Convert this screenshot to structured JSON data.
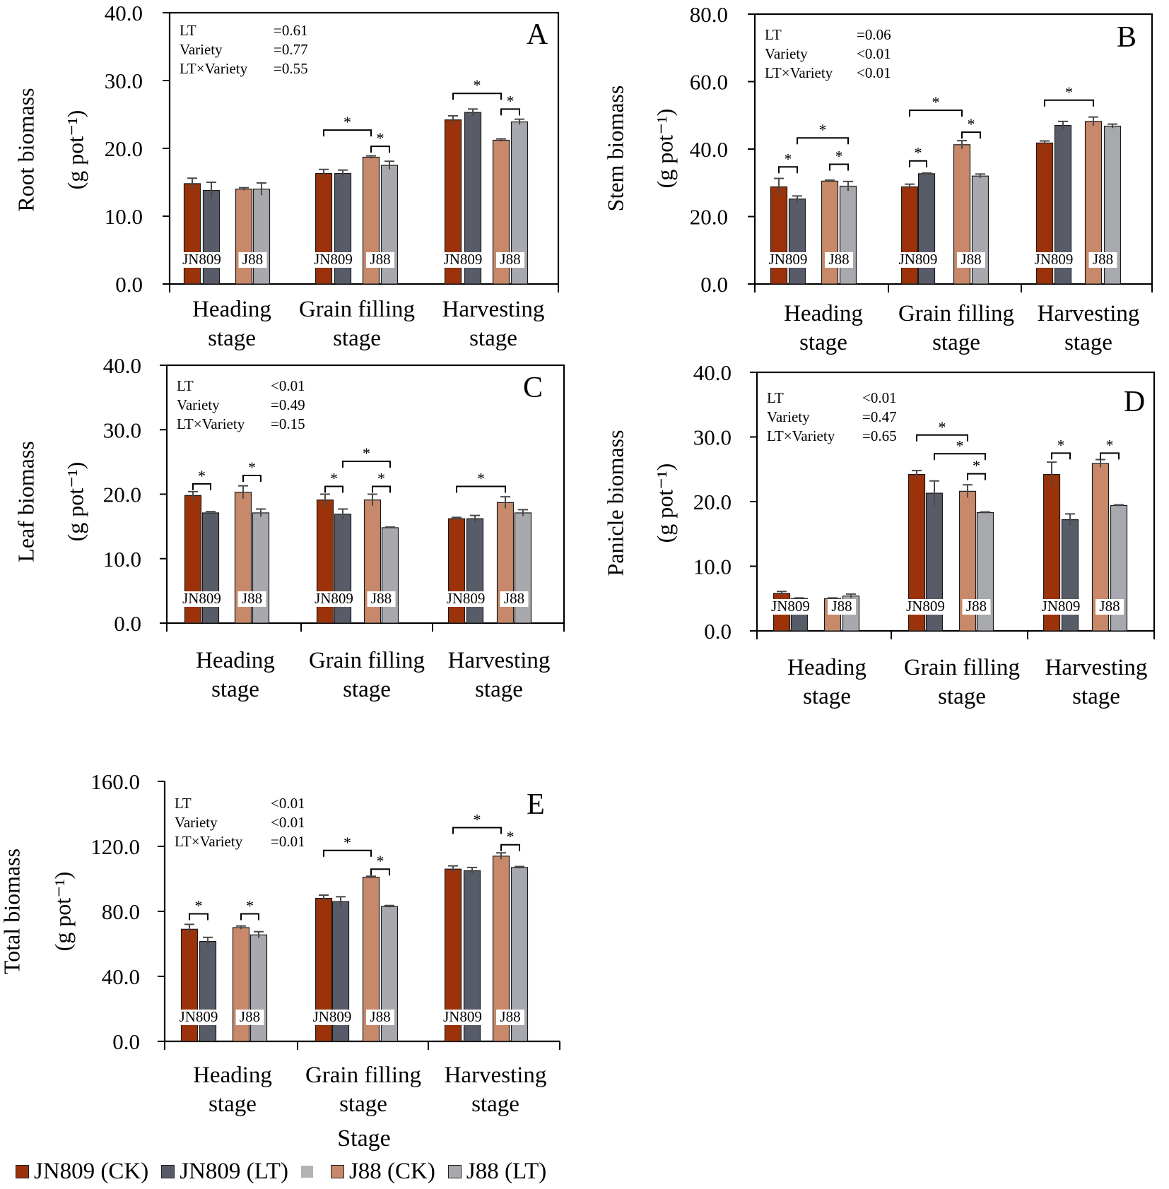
{
  "figure": {
    "x_axis_title": "Stage",
    "legend": [
      {
        "label": "JN809 (CK)",
        "color": "#9b3209"
      },
      {
        "label": "JN809 (LT)",
        "color": "#585c68"
      },
      {
        "label": "",
        "color": "#b2b2b2"
      },
      {
        "label": "J88 (CK)",
        "color": "#c8896a"
      },
      {
        "label": "J88 (LT)",
        "color": "#a7a9ae"
      }
    ]
  },
  "chart_data": [
    {
      "type": "bar",
      "panel": "A",
      "ylabel": [
        "Root biomass",
        "(g pot⁻¹)"
      ],
      "ylim": [
        0,
        40
      ],
      "yticks": [
        0,
        10,
        20,
        30,
        40
      ],
      "ytick_labels": [
        "0.0",
        "10.0",
        "20.0",
        "30.0",
        "40.0"
      ],
      "categories": [
        [
          "Heading",
          "stage"
        ],
        [
          "Grain filling",
          "stage"
        ],
        [
          "Harvesting",
          "stage"
        ]
      ],
      "series": [
        {
          "name": "JN809 (CK)",
          "values": [
            14.8,
            16.3,
            24.2
          ],
          "errors": [
            0.8,
            0.6,
            0.6
          ]
        },
        {
          "name": "JN809 (LT)",
          "values": [
            13.8,
            16.3,
            25.3
          ],
          "errors": [
            1.2,
            0.5,
            0.5
          ]
        },
        {
          "name": "J88 (CK)",
          "values": [
            14.0,
            18.7,
            21.2
          ],
          "errors": [
            0.2,
            0.2,
            0.2
          ]
        },
        {
          "name": "J88 (LT)",
          "values": [
            14.0,
            17.5,
            23.9
          ],
          "errors": [
            0.9,
            0.6,
            0.4
          ]
        }
      ],
      "group_labels": [
        "JN809",
        "J88"
      ],
      "stats": [
        {
          "label": "LT",
          "value": "=0.61"
        },
        {
          "label": "Variety",
          "value": "=0.77"
        },
        {
          "label": "LT×Variety",
          "value": "=0.55"
        }
      ],
      "sig_brackets": [
        {
          "group": 1,
          "from": 0,
          "to": 2,
          "level": 22.7,
          "label": "*"
        },
        {
          "group": 1,
          "from": 2,
          "to": 3,
          "level": 20.3,
          "label": "*"
        },
        {
          "group": 2,
          "from": 0,
          "to": 2,
          "level": 28.1,
          "label": "*"
        },
        {
          "group": 2,
          "from": 2,
          "to": 3,
          "level": 25.8,
          "label": "*"
        }
      ]
    },
    {
      "type": "bar",
      "panel": "B",
      "ylabel": [
        "Stem biomass",
        "(g pot⁻¹)"
      ],
      "ylim": [
        0,
        80
      ],
      "yticks": [
        0,
        20,
        40,
        60,
        80
      ],
      "ytick_labels": [
        "0.0",
        "20.0",
        "40.0",
        "60.0",
        "80.0"
      ],
      "categories": [
        [
          "Heading",
          "stage"
        ],
        [
          "Grain filling",
          "stage"
        ],
        [
          "Harvesting",
          "stage"
        ]
      ],
      "series": [
        {
          "name": "JN809 (CK)",
          "values": [
            28.8,
            28.8,
            41.8
          ],
          "errors": [
            2.5,
            0.8,
            0.6
          ]
        },
        {
          "name": "JN809 (LT)",
          "values": [
            25.2,
            32.7,
            47.0
          ],
          "errors": [
            0.9,
            0.2,
            1.2
          ]
        },
        {
          "name": "J88 (CK)",
          "values": [
            30.5,
            41.3,
            48.2
          ],
          "errors": [
            0.3,
            1.2,
            1.3
          ]
        },
        {
          "name": "J88 (LT)",
          "values": [
            29.0,
            32.0,
            46.8
          ],
          "errors": [
            1.4,
            0.6,
            0.6
          ]
        }
      ],
      "group_labels": [
        "JN809",
        "J88"
      ],
      "stats": [
        {
          "label": "LT",
          "value": "=0.06"
        },
        {
          "label": "Variety",
          "value": "<0.01"
        },
        {
          "label": "LT×Variety",
          "value": "<0.01"
        }
      ],
      "sig_brackets": [
        {
          "group": 0,
          "from": 0,
          "to": 1,
          "level": 34.7,
          "label": "*"
        },
        {
          "group": 0,
          "from": 2,
          "to": 3,
          "level": 35.5,
          "label": "*"
        },
        {
          "group": 0,
          "from": 1,
          "to": 3,
          "level": 43.3,
          "label": "*"
        },
        {
          "group": 1,
          "from": 0,
          "to": 1,
          "level": 36.5,
          "label": "*"
        },
        {
          "group": 1,
          "from": 0,
          "to": 2,
          "level": 51.5,
          "label": "*"
        },
        {
          "group": 1,
          "from": 2,
          "to": 3,
          "level": 45.0,
          "label": "*"
        },
        {
          "group": 2,
          "from": 0,
          "to": 2,
          "level": 54.5,
          "label": "*"
        }
      ]
    },
    {
      "type": "bar",
      "panel": "C",
      "ylabel": [
        "Leaf  biomass",
        "(g pot⁻¹)"
      ],
      "ylim": [
        0,
        40
      ],
      "yticks": [
        0,
        10,
        20,
        30,
        40
      ],
      "ytick_labels": [
        "0.0",
        "10.0",
        "20.0",
        "30.0",
        "40.0"
      ],
      "categories": [
        [
          "Heading",
          "stage"
        ],
        [
          "Grain filling",
          "stage"
        ],
        [
          "Harvesting",
          "stage"
        ]
      ],
      "series": [
        {
          "name": "JN809 (CK)",
          "values": [
            19.8,
            19.1,
            16.2
          ],
          "errors": [
            0.6,
            0.9,
            0.2
          ]
        },
        {
          "name": "JN809 (LT)",
          "values": [
            17.1,
            16.9,
            16.2
          ],
          "errors": [
            0.2,
            0.8,
            0.5
          ]
        },
        {
          "name": "J88 (CK)",
          "values": [
            20.3,
            19.1,
            18.7
          ],
          "errors": [
            1.0,
            0.9,
            0.9
          ]
        },
        {
          "name": "J88 (LT)",
          "values": [
            17.1,
            14.8,
            17.1
          ],
          "errors": [
            0.6,
            0.1,
            0.5
          ]
        }
      ],
      "group_labels": [
        "JN809",
        "J88"
      ],
      "stats": [
        {
          "label": "LT",
          "value": "<0.01"
        },
        {
          "label": "Variety",
          "value": "=0.49"
        },
        {
          "label": "LT×Variety",
          "value": "=0.15"
        }
      ],
      "sig_brackets": [
        {
          "group": 0,
          "from": 0,
          "to": 1,
          "level": 21.6,
          "label": "*"
        },
        {
          "group": 0,
          "from": 2,
          "to": 3,
          "level": 22.9,
          "label": "*"
        },
        {
          "group": 1,
          "from": 0,
          "to": 1,
          "level": 21.2,
          "label": "*"
        },
        {
          "group": 1,
          "from": 1,
          "to": 3,
          "level": 25.1,
          "label": "*"
        },
        {
          "group": 1,
          "from": 2,
          "to": 3,
          "level": 21.2,
          "label": "*"
        },
        {
          "group": 2,
          "from": 0,
          "to": 2,
          "level": 21.2,
          "label": "*"
        }
      ]
    },
    {
      "type": "bar",
      "panel": "D",
      "ylabel": [
        "Panicle  biomass",
        "(g pot⁻¹)"
      ],
      "ylim": [
        0,
        40
      ],
      "yticks": [
        0,
        10,
        20,
        30,
        40
      ],
      "ytick_labels": [
        "0.0",
        "10.0",
        "20.0",
        "30.0",
        "40.0"
      ],
      "categories": [
        [
          "Heading",
          "stage"
        ],
        [
          "Grain filling",
          "stage"
        ],
        [
          "Harvesting",
          "stage"
        ]
      ],
      "series": [
        {
          "name": "JN809 (CK)",
          "values": [
            5.8,
            24.2,
            24.2
          ],
          "errors": [
            0.3,
            0.6,
            1.9
          ]
        },
        {
          "name": "JN809 (LT)",
          "values": [
            5.0,
            21.3,
            17.2
          ],
          "errors": [
            0.1,
            1.9,
            0.9
          ]
        },
        {
          "name": "J88 (CK)",
          "values": [
            5.0,
            21.6,
            25.9
          ],
          "errors": [
            0.1,
            1.0,
            0.6
          ]
        },
        {
          "name": "J88 (LT)",
          "values": [
            5.4,
            18.3,
            19.4
          ],
          "errors": [
            0.3,
            0.1,
            0.1
          ]
        }
      ],
      "group_labels": [
        "JN809",
        "J88"
      ],
      "stats": [
        {
          "label": "LT",
          "value": "<0.01"
        },
        {
          "label": "Variety",
          "value": "=0.47"
        },
        {
          "label": "LT×Variety",
          "value": "=0.65"
        }
      ],
      "sig_brackets": [
        {
          "group": 1,
          "from": 0,
          "to": 2,
          "level": 30.3,
          "label": "*"
        },
        {
          "group": 1,
          "from": 1,
          "to": 3,
          "level": 27.4,
          "label": "*"
        },
        {
          "group": 1,
          "from": 2,
          "to": 3,
          "level": 24.3,
          "label": "*"
        },
        {
          "group": 2,
          "from": 0,
          "to": 1,
          "level": 27.5,
          "label": "*"
        },
        {
          "group": 2,
          "from": 2,
          "to": 3,
          "level": 27.5,
          "label": "*"
        }
      ]
    },
    {
      "type": "bar",
      "panel": "E",
      "ylabel": [
        "Total biomass",
        "(g pot⁻¹)"
      ],
      "ylim": [
        0,
        160
      ],
      "yticks": [
        0,
        40,
        80,
        120,
        160
      ],
      "ytick_labels": [
        "0.0",
        "40.0",
        "80.0",
        "120.0",
        "160.0"
      ],
      "categories": [
        [
          "Heading",
          "stage"
        ],
        [
          "Grain filling",
          "stage"
        ],
        [
          "Harvesting",
          "stage"
        ]
      ],
      "series": [
        {
          "name": "JN809 (CK)",
          "values": [
            69.0,
            88.0,
            106.0
          ],
          "errors": [
            3.0,
            2.0,
            2.0
          ]
        },
        {
          "name": "JN809 (LT)",
          "values": [
            61.5,
            86.0,
            105.0
          ],
          "errors": [
            2.5,
            3.0,
            2.0
          ]
        },
        {
          "name": "J88 (CK)",
          "values": [
            70.0,
            101.0,
            114.0
          ],
          "errors": [
            1.0,
            0.6,
            2.0
          ]
        },
        {
          "name": "J88 (LT)",
          "values": [
            65.5,
            83.0,
            107.0
          ],
          "errors": [
            2.0,
            0.6,
            0.6
          ]
        }
      ],
      "group_labels": [
        "JN809",
        "J88"
      ],
      "stats": [
        {
          "label": "LT",
          "value": "<0.01"
        },
        {
          "label": "Variety",
          "value": "<0.01"
        },
        {
          "label": "LT×Variety",
          "value": "=0.01"
        }
      ],
      "sig_brackets": [
        {
          "group": 0,
          "from": 0,
          "to": 1,
          "level": 78.5,
          "label": "*"
        },
        {
          "group": 0,
          "from": 2,
          "to": 3,
          "level": 78.5,
          "label": "*"
        },
        {
          "group": 1,
          "from": 0,
          "to": 2,
          "level": 117.5,
          "label": "*"
        },
        {
          "group": 1,
          "from": 2,
          "to": 3,
          "level": 106.0,
          "label": "*"
        },
        {
          "group": 2,
          "from": 0,
          "to": 2,
          "level": 131.5,
          "label": "*"
        },
        {
          "group": 2,
          "from": 2,
          "to": 3,
          "level": 121.0,
          "label": "*"
        }
      ]
    }
  ]
}
